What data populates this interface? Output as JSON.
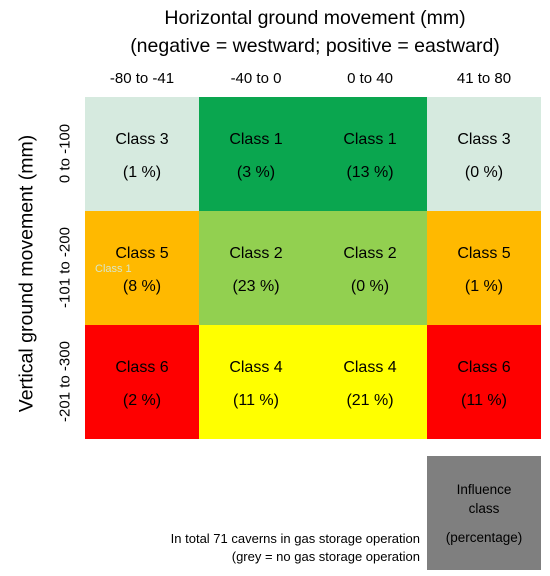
{
  "title_line1": "Horizontal ground movement (mm)",
  "title_line2": "(negative = westward; positive = eastward)",
  "y_title": "Vertical ground movement (mm)",
  "col_headers": [
    "-80 to -41",
    "-40 to 0",
    "0 to 40",
    "41 to 80"
  ],
  "row_headers": [
    "0 to -100",
    "-101 to -200",
    "-201 to -300"
  ],
  "cells": [
    [
      {
        "class": "Class 3",
        "pct": "(1 %)",
        "color": "#d6eadf"
      },
      {
        "class": "Class 1",
        "pct": "(3 %)",
        "color": "#0aa64f"
      },
      {
        "class": "Class 1",
        "pct": "(13 %)",
        "color": "#0aa64f"
      },
      {
        "class": "Class 3",
        "pct": "(0 %)",
        "color": "#d6eadf"
      }
    ],
    [
      {
        "class": "Class 5",
        "pct": "(8 %)",
        "color": "#ffb900"
      },
      {
        "class": "Class 2",
        "pct": "(23 %)",
        "color": "#92d050"
      },
      {
        "class": "Class 2",
        "pct": "(0 %)",
        "color": "#92d050"
      },
      {
        "class": "Class 5",
        "pct": "(1 %)",
        "color": "#ffb900"
      }
    ],
    [
      {
        "class": "Class 6",
        "pct": "(2 %)",
        "color": "#fe0000"
      },
      {
        "class": "Class 4",
        "pct": "(11 %)",
        "color": "#ffff00"
      },
      {
        "class": "Class 4",
        "pct": "(21 %)",
        "color": "#ffff00"
      },
      {
        "class": "Class 6",
        "pct": "(11 %)",
        "color": "#fe0000"
      }
    ]
  ],
  "ghost_label": "Class 1",
  "legend": {
    "line1": "Influence",
    "line2": "class",
    "line3": "(percentage)",
    "color": "#7f7f7f"
  },
  "note_line1": "In total 71 caverns in gas storage operation",
  "note_line2": "(grey = no gas storage operation"
}
